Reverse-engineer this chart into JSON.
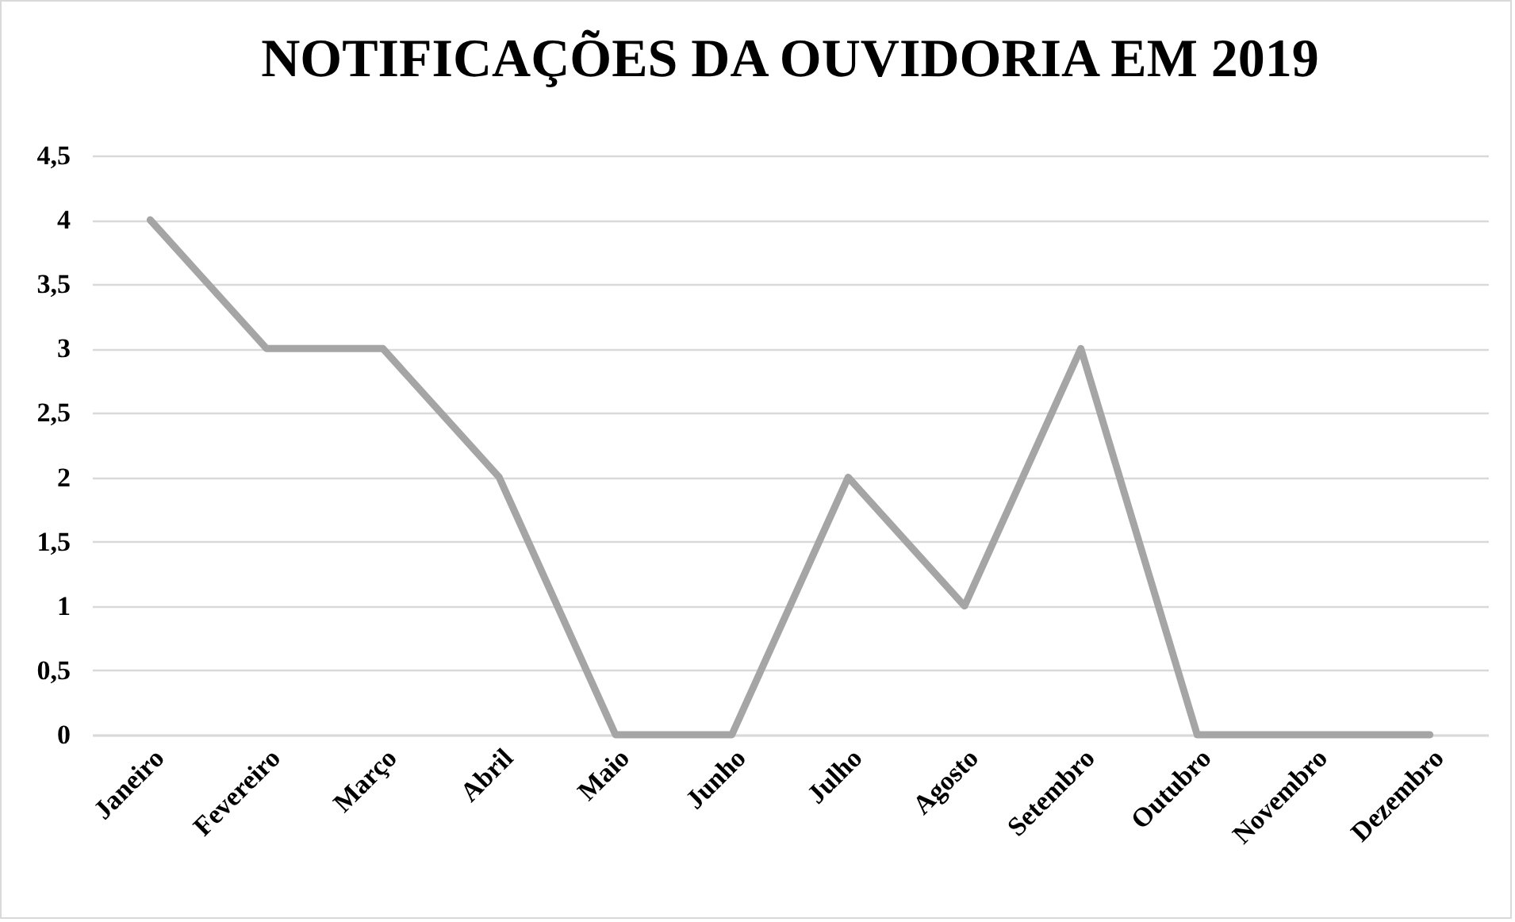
{
  "chart_data": {
    "type": "line",
    "title": "NOTIFICAÇÕES DA OUVIDORIA EM 2019",
    "categories": [
      "Janeiro",
      "Fevereiro",
      "Março",
      "Abril",
      "Maio",
      "Junho",
      "Julho",
      "Agosto",
      "Setembro",
      "Outubro",
      "Novembro",
      "Dezembro"
    ],
    "series": [
      {
        "color": "#a5a5a5",
        "values": [
          4,
          3,
          3,
          2,
          0,
          0,
          2,
          1,
          3,
          0,
          0,
          0
        ]
      }
    ],
    "ylim": [
      0,
      4.5
    ],
    "yticks": [
      {
        "value": 0,
        "label": "0"
      },
      {
        "value": 0.5,
        "label": "0,5"
      },
      {
        "value": 1,
        "label": "1"
      },
      {
        "value": 1.5,
        "label": "1,5"
      },
      {
        "value": 2,
        "label": "2"
      },
      {
        "value": 2.5,
        "label": "2,5"
      },
      {
        "value": 3,
        "label": "3"
      },
      {
        "value": 3.5,
        "label": "3,5"
      },
      {
        "value": 4,
        "label": "4"
      },
      {
        "value": 4.5,
        "label": "4,5"
      }
    ],
    "grid": "y",
    "marker": "none",
    "line_style": "solid"
  }
}
